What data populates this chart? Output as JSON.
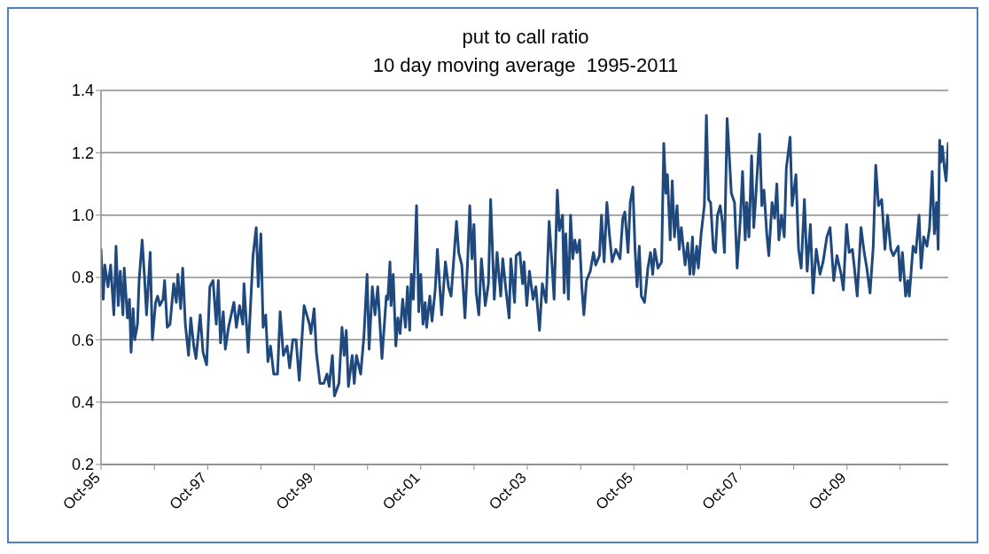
{
  "chart_data": {
    "type": "line",
    "title": "put to call ratio",
    "subtitle": "10 day moving average  1995-2011",
    "x": [
      "1995-10-01",
      "1995-10-16",
      "1995-10-27",
      "1995-11-18",
      "1995-12-06",
      "1995-12-28",
      "1996-01-12",
      "1996-01-27",
      "1996-02-10",
      "1996-02-28",
      "1996-03-08",
      "1996-03-30",
      "1996-04-13",
      "1996-04-24",
      "1996-05-08",
      "1996-05-19",
      "1996-06-07",
      "1996-06-18",
      "1996-07-09",
      "1996-07-24",
      "1996-08-08",
      "1996-09-02",
      "1996-09-17",
      "1996-10-09",
      "1996-10-23",
      "1996-11-07",
      "1996-11-29",
      "1996-12-10",
      "1996-12-28",
      "1997-01-16",
      "1997-02-10",
      "1997-02-28",
      "1997-03-11",
      "1997-03-30",
      "1997-04-13",
      "1997-05-01",
      "1997-05-23",
      "1997-06-07",
      "1997-06-28",
      "1997-07-13",
      "1997-08-11",
      "1997-08-30",
      "1997-09-24",
      "1997-10-16",
      "1997-11-07",
      "1997-11-29",
      "1997-12-13",
      "1997-12-28",
      "1998-01-16",
      "1998-01-30",
      "1998-02-21",
      "1998-03-30",
      "1998-04-16",
      "1998-05-08",
      "1998-05-30",
      "1998-06-07",
      "1998-07-06",
      "1998-08-08",
      "1998-08-30",
      "1998-09-13",
      "1998-10-01",
      "1998-10-16",
      "1998-11-03",
      "1998-11-18",
      "1998-12-06",
      "1998-12-28",
      "1999-01-23",
      "1999-02-10",
      "1999-03-04",
      "1999-03-30",
      "1999-04-16",
      "1999-05-08",
      "1999-05-30",
      "1999-06-21",
      "1999-07-24",
      "1999-08-30",
      "1999-09-09",
      "1999-10-01",
      "1999-10-16",
      "1999-11-10",
      "1999-12-06",
      "1999-12-28",
      "2000-01-12",
      "2000-02-03",
      "2000-02-17",
      "2000-03-19",
      "2000-04-09",
      "2000-04-24",
      "2000-05-08",
      "2000-05-23",
      "2000-06-18",
      "2000-07-02",
      "2000-07-17",
      "2000-08-15",
      "2000-09-06",
      "2000-09-28",
      "2000-10-12",
      "2000-11-03",
      "2000-11-21",
      "2000-12-10",
      "2001-01-08",
      "2001-02-07",
      "2001-02-17",
      "2001-03-04",
      "2001-03-11",
      "2001-03-26",
      "2001-04-13",
      "2001-04-27",
      "2001-05-12",
      "2001-05-30",
      "2001-06-18",
      "2001-07-02",
      "2001-07-17",
      "2001-07-28",
      "2001-08-11",
      "2001-09-02",
      "2001-09-17",
      "2001-10-01",
      "2001-10-16",
      "2001-10-31",
      "2001-11-10",
      "2001-12-02",
      "2001-12-17",
      "2002-01-08",
      "2002-01-23",
      "2002-02-07",
      "2002-02-21",
      "2002-03-19",
      "2002-04-09",
      "2002-04-27",
      "2002-06-03",
      "2002-06-18",
      "2002-07-09",
      "2002-07-31",
      "2002-08-19",
      "2002-09-02",
      "2002-09-17",
      "2002-10-01",
      "2002-10-16",
      "2002-11-03",
      "2002-11-21",
      "2002-12-17",
      "2003-01-08",
      "2003-01-23",
      "2003-02-17",
      "2003-03-08",
      "2003-04-02",
      "2003-04-16",
      "2003-05-08",
      "2003-05-30",
      "2003-06-10",
      "2003-07-06",
      "2003-07-17",
      "2003-08-11",
      "2003-08-30",
      "2003-09-09",
      "2003-09-28",
      "2003-10-16",
      "2003-11-10",
      "2003-11-29",
      "2003-12-24",
      "2004-01-12",
      "2004-02-07",
      "2004-02-28",
      "2004-03-19",
      "2004-04-02",
      "2004-04-24",
      "2004-05-08",
      "2004-05-30",
      "2004-06-10",
      "2004-06-21",
      "2004-07-09",
      "2004-07-24",
      "2004-08-08",
      "2004-08-22",
      "2004-09-06",
      "2004-09-24",
      "2004-10-09",
      "2004-10-23",
      "2004-11-10",
      "2004-12-06",
      "2004-12-28",
      "2005-01-12",
      "2005-02-07",
      "2005-02-21",
      "2005-03-11",
      "2005-03-30",
      "2005-04-16",
      "2005-05-05",
      "2005-05-30",
      "2005-06-28",
      "2005-07-17",
      "2005-07-31",
      "2005-08-22",
      "2005-09-06",
      "2005-09-24",
      "2005-10-09",
      "2005-10-23",
      "2005-11-07",
      "2005-11-21",
      "2005-12-13",
      "2006-01-05",
      "2006-01-23",
      "2006-02-07",
      "2006-02-21",
      "2006-03-15",
      "2006-04-09",
      "2006-04-24",
      "2006-05-08",
      "2006-05-19",
      "2006-06-07",
      "2006-06-21",
      "2006-07-06",
      "2006-07-24",
      "2006-08-08",
      "2006-08-22",
      "2006-09-17",
      "2006-10-05",
      "2006-10-20",
      "2006-11-07",
      "2006-11-14",
      "2006-12-06",
      "2006-12-17",
      "2007-01-05",
      "2007-01-27",
      "2007-02-10",
      "2007-02-25",
      "2007-03-11",
      "2007-03-30",
      "2007-04-13",
      "2007-04-27",
      "2007-05-16",
      "2007-05-30",
      "2007-06-14",
      "2007-07-02",
      "2007-07-17",
      "2007-07-31",
      "2007-08-22",
      "2007-09-09",
      "2007-10-01",
      "2007-10-16",
      "2007-11-03",
      "2007-11-14",
      "2007-11-29",
      "2007-12-17",
      "2008-01-01",
      "2008-01-16",
      "2008-02-10",
      "2008-02-25",
      "2008-03-11",
      "2008-03-30",
      "2008-04-13",
      "2008-05-05",
      "2008-05-23",
      "2008-06-07",
      "2008-06-21",
      "2008-07-09",
      "2008-07-28",
      "2008-08-11",
      "2008-09-06",
      "2008-09-20",
      "2008-10-16",
      "2008-11-03",
      "2008-11-21",
      "2008-12-13",
      "2009-01-01",
      "2009-01-23",
      "2009-02-10",
      "2009-03-04",
      "2009-03-30",
      "2009-04-20",
      "2009-05-16",
      "2009-06-07",
      "2009-07-02",
      "2009-07-24",
      "2009-08-22",
      "2009-09-06",
      "2009-09-28",
      "2009-10-16",
      "2009-11-07",
      "2009-11-21",
      "2009-12-10",
      "2010-01-05",
      "2010-01-27",
      "2010-02-14",
      "2010-03-08",
      "2010-03-30",
      "2010-04-16",
      "2010-05-05",
      "2010-05-27",
      "2010-06-18",
      "2010-07-06",
      "2010-07-28",
      "2010-08-15",
      "2010-09-17",
      "2010-10-01",
      "2010-10-16",
      "2010-11-07",
      "2010-11-21",
      "2010-12-02",
      "2010-12-28",
      "2011-01-16",
      "2011-02-07",
      "2011-02-21",
      "2011-03-11",
      "2011-04-02",
      "2011-04-20",
      "2011-05-08",
      "2011-05-23",
      "2011-06-07",
      "2011-06-18",
      "2011-06-28",
      "2011-07-06",
      "2011-07-17",
      "2011-07-31",
      "2011-08-11",
      "2011-08-26"
    ],
    "series": [
      {
        "color": "#1f497d",
        "values": [
          0.89,
          0.73,
          0.84,
          0.77,
          0.84,
          0.68,
          0.9,
          0.71,
          0.82,
          0.68,
          0.83,
          0.67,
          0.73,
          0.56,
          0.7,
          0.6,
          0.65,
          0.79,
          0.92,
          0.81,
          0.68,
          0.88,
          0.6,
          0.72,
          0.74,
          0.71,
          0.73,
          0.79,
          0.64,
          0.65,
          0.78,
          0.72,
          0.81,
          0.7,
          0.83,
          0.65,
          0.55,
          0.67,
          0.58,
          0.54,
          0.68,
          0.56,
          0.52,
          0.77,
          0.79,
          0.65,
          0.79,
          0.59,
          0.69,
          0.57,
          0.64,
          0.72,
          0.64,
          0.71,
          0.65,
          0.78,
          0.56,
          0.87,
          0.96,
          0.77,
          0.94,
          0.64,
          0.68,
          0.53,
          0.58,
          0.49,
          0.49,
          0.69,
          0.55,
          0.58,
          0.51,
          0.6,
          0.6,
          0.47,
          0.71,
          0.65,
          0.62,
          0.7,
          0.56,
          0.46,
          0.46,
          0.49,
          0.45,
          0.55,
          0.42,
          0.46,
          0.64,
          0.55,
          0.63,
          0.45,
          0.55,
          0.46,
          0.55,
          0.49,
          0.61,
          0.81,
          0.57,
          0.77,
          0.68,
          0.77,
          0.54,
          0.74,
          0.73,
          0.85,
          0.71,
          0.81,
          0.58,
          0.67,
          0.62,
          0.73,
          0.64,
          0.77,
          0.63,
          0.81,
          0.73,
          1.03,
          0.69,
          0.81,
          0.65,
          0.72,
          0.64,
          0.74,
          0.66,
          0.76,
          0.89,
          0.78,
          0.68,
          0.85,
          0.77,
          0.74,
          0.98,
          0.88,
          0.84,
          0.67,
          0.86,
          1.03,
          0.86,
          0.97,
          0.75,
          0.68,
          0.86,
          0.71,
          0.78,
          1.05,
          0.73,
          0.88,
          0.74,
          0.86,
          0.76,
          0.67,
          0.86,
          0.72,
          0.87,
          0.88,
          0.78,
          0.85,
          0.71,
          0.82,
          0.73,
          0.77,
          0.63,
          0.78,
          0.72,
          0.98,
          0.84,
          0.73,
          1.08,
          0.95,
          1.0,
          0.75,
          0.94,
          0.73,
          1.0,
          0.86,
          0.92,
          0.88,
          0.92,
          0.77,
          0.68,
          0.79,
          0.82,
          0.88,
          0.84,
          0.87,
          1.0,
          0.85,
          1.04,
          0.94,
          0.85,
          0.89,
          0.86,
          0.99,
          1.01,
          0.88,
          1.04,
          1.09,
          0.89,
          0.77,
          0.9,
          0.74,
          0.72,
          0.83,
          0.88,
          0.81,
          0.89,
          0.83,
          0.85,
          1.23,
          1.07,
          1.13,
          0.92,
          1.11,
          0.93,
          1.03,
          0.89,
          0.96,
          0.84,
          0.91,
          0.81,
          0.93,
          0.81,
          0.9,
          0.83,
          0.94,
          1.03,
          1.32,
          1.05,
          1.04,
          0.89,
          0.88,
          1.0,
          1.03,
          0.98,
          0.88,
          1.31,
          1.19,
          1.07,
          1.04,
          0.83,
          0.99,
          1.14,
          0.92,
          1.04,
          0.93,
          1.19,
          0.96,
          1.07,
          1.26,
          1.03,
          1.08,
          0.94,
          0.87,
          1.04,
          0.99,
          1.1,
          0.92,
          1.0,
          0.93,
          1.15,
          1.25,
          1.03,
          1.13,
          0.89,
          0.83,
          1.05,
          0.82,
          0.97,
          0.75,
          0.89,
          0.81,
          0.85,
          0.93,
          0.96,
          0.79,
          0.87,
          0.81,
          0.76,
          0.97,
          0.88,
          0.89,
          0.83,
          0.74,
          0.96,
          0.88,
          0.83,
          0.75,
          0.9,
          1.16,
          1.03,
          1.05,
          0.89,
          1.0,
          0.89,
          0.87,
          0.9,
          0.79,
          0.88,
          0.74,
          0.79,
          0.74,
          0.9,
          0.88,
          1.0,
          0.83,
          0.93,
          0.9,
          0.96,
          1.14,
          0.94,
          1.04,
          0.89,
          1.24,
          1.17,
          1.22,
          1.15,
          1.11,
          1.23
        ]
      }
    ],
    "xlim": [
      "1995-10-01",
      "2011-08-26"
    ],
    "xticks": [
      {
        "value": "1995-10-01",
        "label": "Oct-95"
      },
      {
        "value": "1996-10-01",
        "label": null
      },
      {
        "value": "1997-10-01",
        "label": "Oct-97"
      },
      {
        "value": "1998-10-01",
        "label": null
      },
      {
        "value": "1999-10-01",
        "label": "Oct-99"
      },
      {
        "value": "2000-10-01",
        "label": null
      },
      {
        "value": "2001-10-01",
        "label": "Oct-01"
      },
      {
        "value": "2002-10-01",
        "label": null
      },
      {
        "value": "2003-10-01",
        "label": "Oct-03"
      },
      {
        "value": "2004-10-01",
        "label": null
      },
      {
        "value": "2005-10-01",
        "label": "Oct-05"
      },
      {
        "value": "2006-10-01",
        "label": null
      },
      {
        "value": "2007-10-01",
        "label": "Oct-07"
      },
      {
        "value": "2008-10-01",
        "label": null
      },
      {
        "value": "2009-10-01",
        "label": "Oct-09"
      },
      {
        "value": "2010-10-01",
        "label": null
      }
    ],
    "ylim": [
      0.2,
      1.4
    ],
    "yticks": [
      {
        "value": 0.2,
        "label": "0.2"
      },
      {
        "value": 0.4,
        "label": "0.4"
      },
      {
        "value": 0.6,
        "label": "0.6"
      },
      {
        "value": 0.8,
        "label": "0.8"
      },
      {
        "value": 1.0,
        "label": "1.0"
      },
      {
        "value": 1.2,
        "label": "1.2"
      },
      {
        "value": 1.4,
        "label": "1.4"
      }
    ],
    "grid": "y",
    "marker": "none",
    "line_style": "solid"
  }
}
